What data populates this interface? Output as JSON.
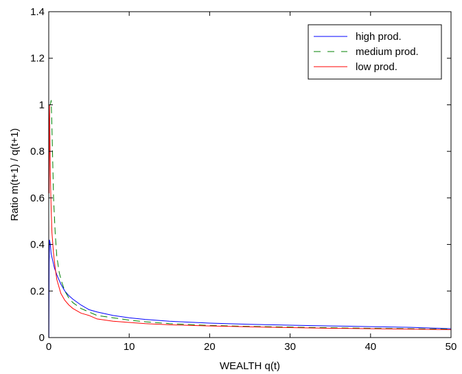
{
  "chart_data": {
    "type": "line",
    "title": "",
    "xlabel": "WEALTH q(t)",
    "ylabel": "Ratio m(t+1) / q(t+1)",
    "xlim": [
      0,
      50
    ],
    "ylim": [
      0,
      1.4
    ],
    "xticks": [
      0,
      10,
      20,
      30,
      40,
      50
    ],
    "yticks": [
      0,
      0.2,
      0.4,
      0.6,
      0.8,
      1,
      1.2,
      1.4
    ],
    "xtick_labels": [
      "0",
      "10",
      "20",
      "30",
      "40",
      "50"
    ],
    "ytick_labels": [
      "0",
      "0.2",
      "0.4",
      "0.6",
      "0.8",
      "1",
      "1.2",
      "1.4"
    ],
    "grid": false,
    "legend_position": "top-right",
    "series": [
      {
        "name": "high prod.",
        "color": "#0000ff",
        "dash": "solid",
        "x": [
          0.02,
          0.05,
          0.1,
          0.2,
          0.3,
          0.5,
          0.7,
          1.0,
          1.5,
          2,
          2.5,
          3,
          4,
          5,
          6,
          8,
          10,
          12,
          15,
          20,
          25,
          30,
          35,
          40,
          45,
          50
        ],
        "y": [
          0.0,
          0.32,
          0.42,
          0.4,
          0.36,
          0.33,
          0.3,
          0.27,
          0.23,
          0.2,
          0.18,
          0.165,
          0.14,
          0.12,
          0.11,
          0.095,
          0.085,
          0.078,
          0.07,
          0.062,
          0.057,
          0.053,
          0.05,
          0.047,
          0.044,
          0.038
        ]
      },
      {
        "name": "medium prod.",
        "color": "#008000",
        "dash": "dashed",
        "x": [
          0.2,
          0.3,
          0.4,
          0.5,
          0.6,
          0.8,
          1.0,
          1.3,
          1.6,
          2,
          2.5,
          3,
          4,
          5,
          6,
          8,
          10,
          12,
          15,
          20,
          25,
          30,
          35,
          40,
          45,
          50
        ],
        "y": [
          1.0,
          1.02,
          0.9,
          0.75,
          0.6,
          0.45,
          0.35,
          0.28,
          0.24,
          0.2,
          0.17,
          0.15,
          0.125,
          0.11,
          0.095,
          0.085,
          0.075,
          0.068,
          0.06,
          0.052,
          0.048,
          0.045,
          0.042,
          0.04,
          0.038,
          0.036
        ]
      },
      {
        "name": "low prod.",
        "color": "#ff0000",
        "dash": "solid",
        "x": [
          0.05,
          0.08,
          0.1,
          0.15,
          0.2,
          0.3,
          0.4,
          0.6,
          0.8,
          1.0,
          1.5,
          2,
          2.5,
          3,
          4,
          5,
          6,
          8,
          10,
          12,
          15,
          20,
          25,
          30,
          35,
          40,
          45,
          50
        ],
        "y": [
          0.62,
          0.9,
          1.0,
          0.85,
          0.7,
          0.55,
          0.45,
          0.36,
          0.3,
          0.25,
          0.19,
          0.16,
          0.14,
          0.125,
          0.105,
          0.095,
          0.08,
          0.07,
          0.065,
          0.06,
          0.055,
          0.05,
          0.046,
          0.043,
          0.04,
          0.038,
          0.036,
          0.034
        ]
      }
    ]
  }
}
